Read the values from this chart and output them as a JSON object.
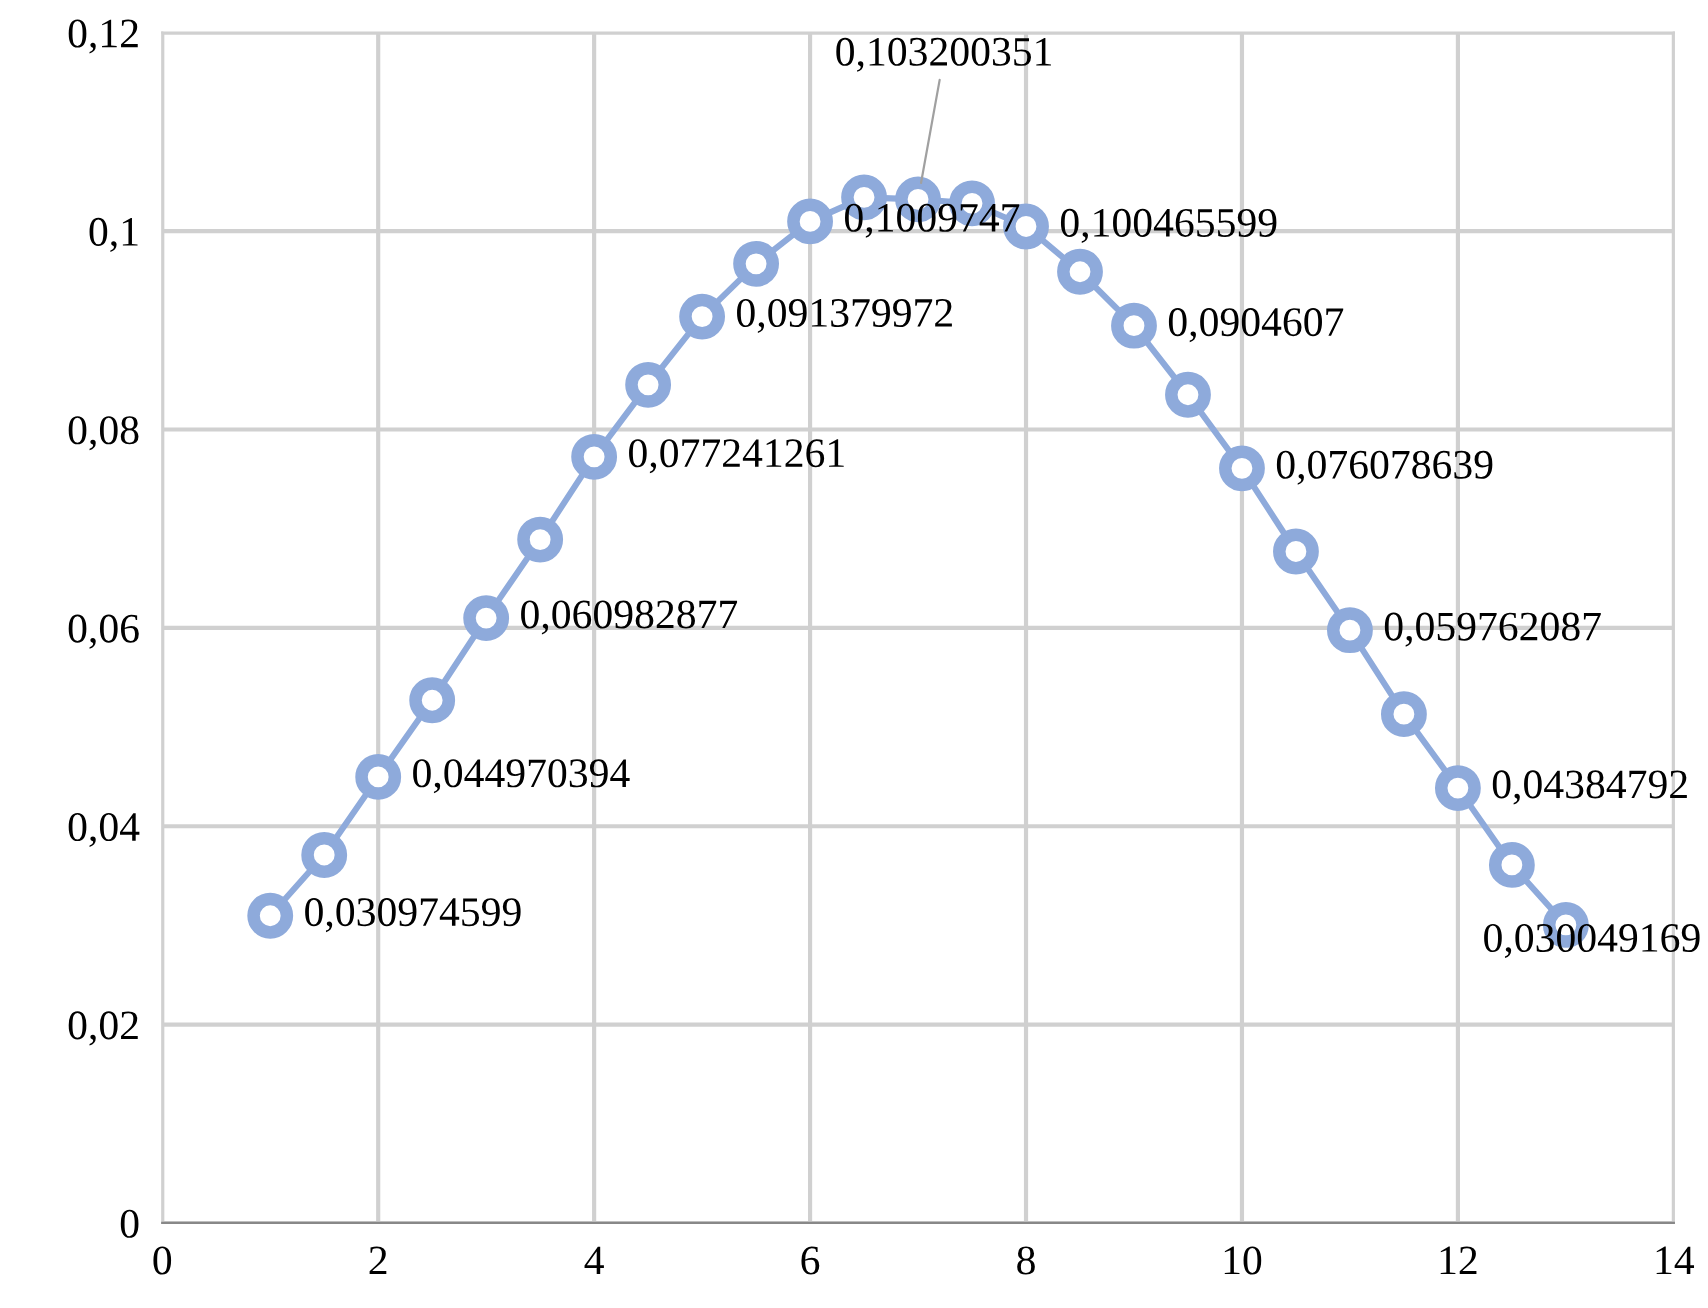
{
  "chart_data": {
    "type": "line",
    "x": [
      1,
      1.5,
      2,
      2.5,
      3,
      3.5,
      4,
      4.5,
      5,
      5.5,
      6,
      6.5,
      7,
      7.5,
      8,
      8.5,
      9,
      9.5,
      10,
      10.5,
      11,
      11.5,
      12,
      12.5,
      13
    ],
    "series": [
      {
        "color": "#8eaadb",
        "values": [
          0.030974599,
          0.0371,
          0.044970394,
          0.0527,
          0.060982877,
          0.0689,
          0.077241261,
          0.0845,
          0.091379972,
          0.0967,
          0.1009747,
          0.1034,
          0.103200351,
          0.1028,
          0.100465599,
          0.0959,
          0.0904607,
          0.0835,
          0.076078639,
          0.0677,
          0.059762087,
          0.0513,
          0.04384792,
          0.0361,
          0.030049169
        ],
        "value_labels": [
          "0,030974599",
          null,
          "0,044970394",
          null,
          "0,060982877",
          null,
          "0,077241261",
          null,
          "0,091379972",
          null,
          "0,1009747",
          null,
          "0,103200351",
          null,
          "0,100465599",
          null,
          "0,0904607",
          null,
          "0,076078639",
          null,
          "0,059762087",
          null,
          "0,04384792",
          null,
          "0,030049169"
        ]
      }
    ],
    "xlim": [
      0,
      14
    ],
    "xticks": [
      {
        "value": 0,
        "label": "0"
      },
      {
        "value": 2,
        "label": "2"
      },
      {
        "value": 4,
        "label": "4"
      },
      {
        "value": 6,
        "label": "6"
      },
      {
        "value": 8,
        "label": "8"
      },
      {
        "value": 10,
        "label": "10"
      },
      {
        "value": 12,
        "label": "12"
      },
      {
        "value": 14,
        "label": "14"
      }
    ],
    "ylim": [
      0,
      0.12
    ],
    "yticks": [
      {
        "value": 0,
        "label": "0"
      },
      {
        "value": 0.02,
        "label": "0,02"
      },
      {
        "value": 0.04,
        "label": "0,04"
      },
      {
        "value": 0.06,
        "label": "0,06"
      },
      {
        "value": 0.08,
        "label": "0,08"
      },
      {
        "value": 0.1,
        "label": "0,1"
      },
      {
        "value": 0.12,
        "label": "0,12"
      }
    ],
    "grid": true,
    "marker": "circle",
    "line_style": "solid"
  }
}
